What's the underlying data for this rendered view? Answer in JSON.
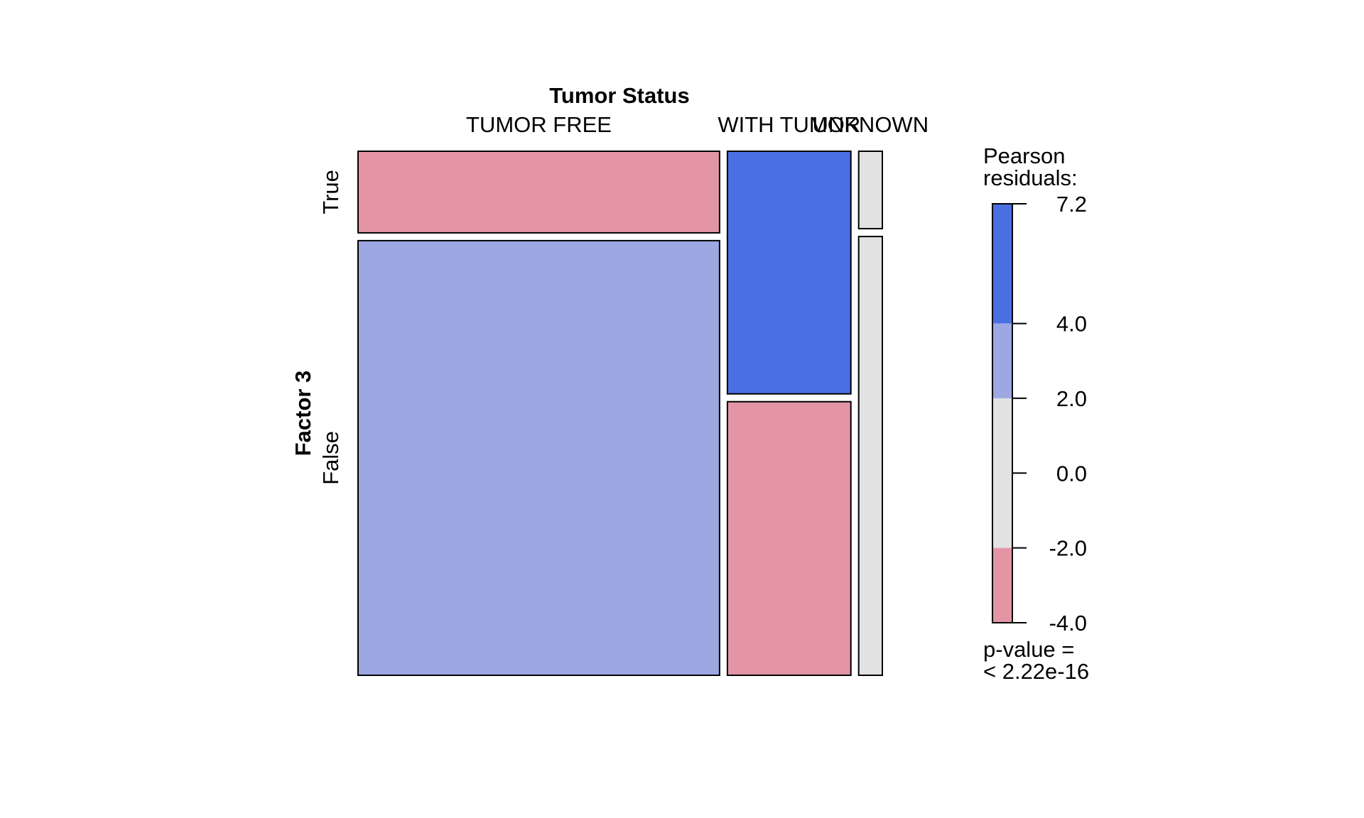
{
  "chart_data": {
    "type": "mosaic",
    "top_variable": "Tumor Status",
    "left_variable": "Factor 3",
    "columns": [
      "TUMOR FREE",
      "WITH TUMOR",
      "UNKNOWN"
    ],
    "rows": [
      "True",
      "False"
    ],
    "column_proportions": [
      0.703,
      0.24,
      0.046
    ],
    "row_proportions_within_column": [
      {
        "True": 0.158,
        "False": 0.842
      },
      {
        "True": 0.47,
        "False": 0.53
      },
      {
        "True": 0.15,
        "False": 0.85
      }
    ],
    "cell_residual_bins": [
      {
        "column": "TUMOR FREE",
        "row": "True",
        "bin": "-4.0 to -2.0"
      },
      {
        "column": "TUMOR FREE",
        "row": "False",
        "bin": "2.0 to 4.0"
      },
      {
        "column": "WITH TUMOR",
        "row": "True",
        "bin": "4.0 to 7.2"
      },
      {
        "column": "WITH TUMOR",
        "row": "False",
        "bin": "-4.0 to -2.0"
      },
      {
        "column": "UNKNOWN",
        "row": "True",
        "bin": "-2.0 to 2.0"
      },
      {
        "column": "UNKNOWN",
        "row": "False",
        "bin": "-2.0 to 2.0"
      }
    ],
    "legend": {
      "title_line1": "Pearson",
      "title_line2": "residuals:",
      "ticks": [
        "7.2",
        "4.0",
        "2.0",
        "0.0",
        "-2.0",
        "-4.0"
      ],
      "tick_values": [
        7.2,
        4.0,
        2.0,
        0.0,
        -2.0,
        -4.0
      ],
      "range": [
        -4.0,
        7.2
      ],
      "bands": [
        {
          "from": 4.0,
          "to": 7.2,
          "color": "#4a6fe3"
        },
        {
          "from": 2.0,
          "to": 4.0,
          "color": "#9da8e2"
        },
        {
          "from": -2.0,
          "to": 2.0,
          "color": "#e2e2e2"
        },
        {
          "from": -4.0,
          "to": -2.0,
          "color": "#e495a5"
        }
      ],
      "pvalue_line1": "p-value =",
      "pvalue_line2": "< 2.22e-16"
    },
    "colors": {
      "strong_positive": "#4a6fe3",
      "positive": "#9da8e2",
      "neutral": "#e2e2e2",
      "negative": "#e495a5"
    }
  }
}
